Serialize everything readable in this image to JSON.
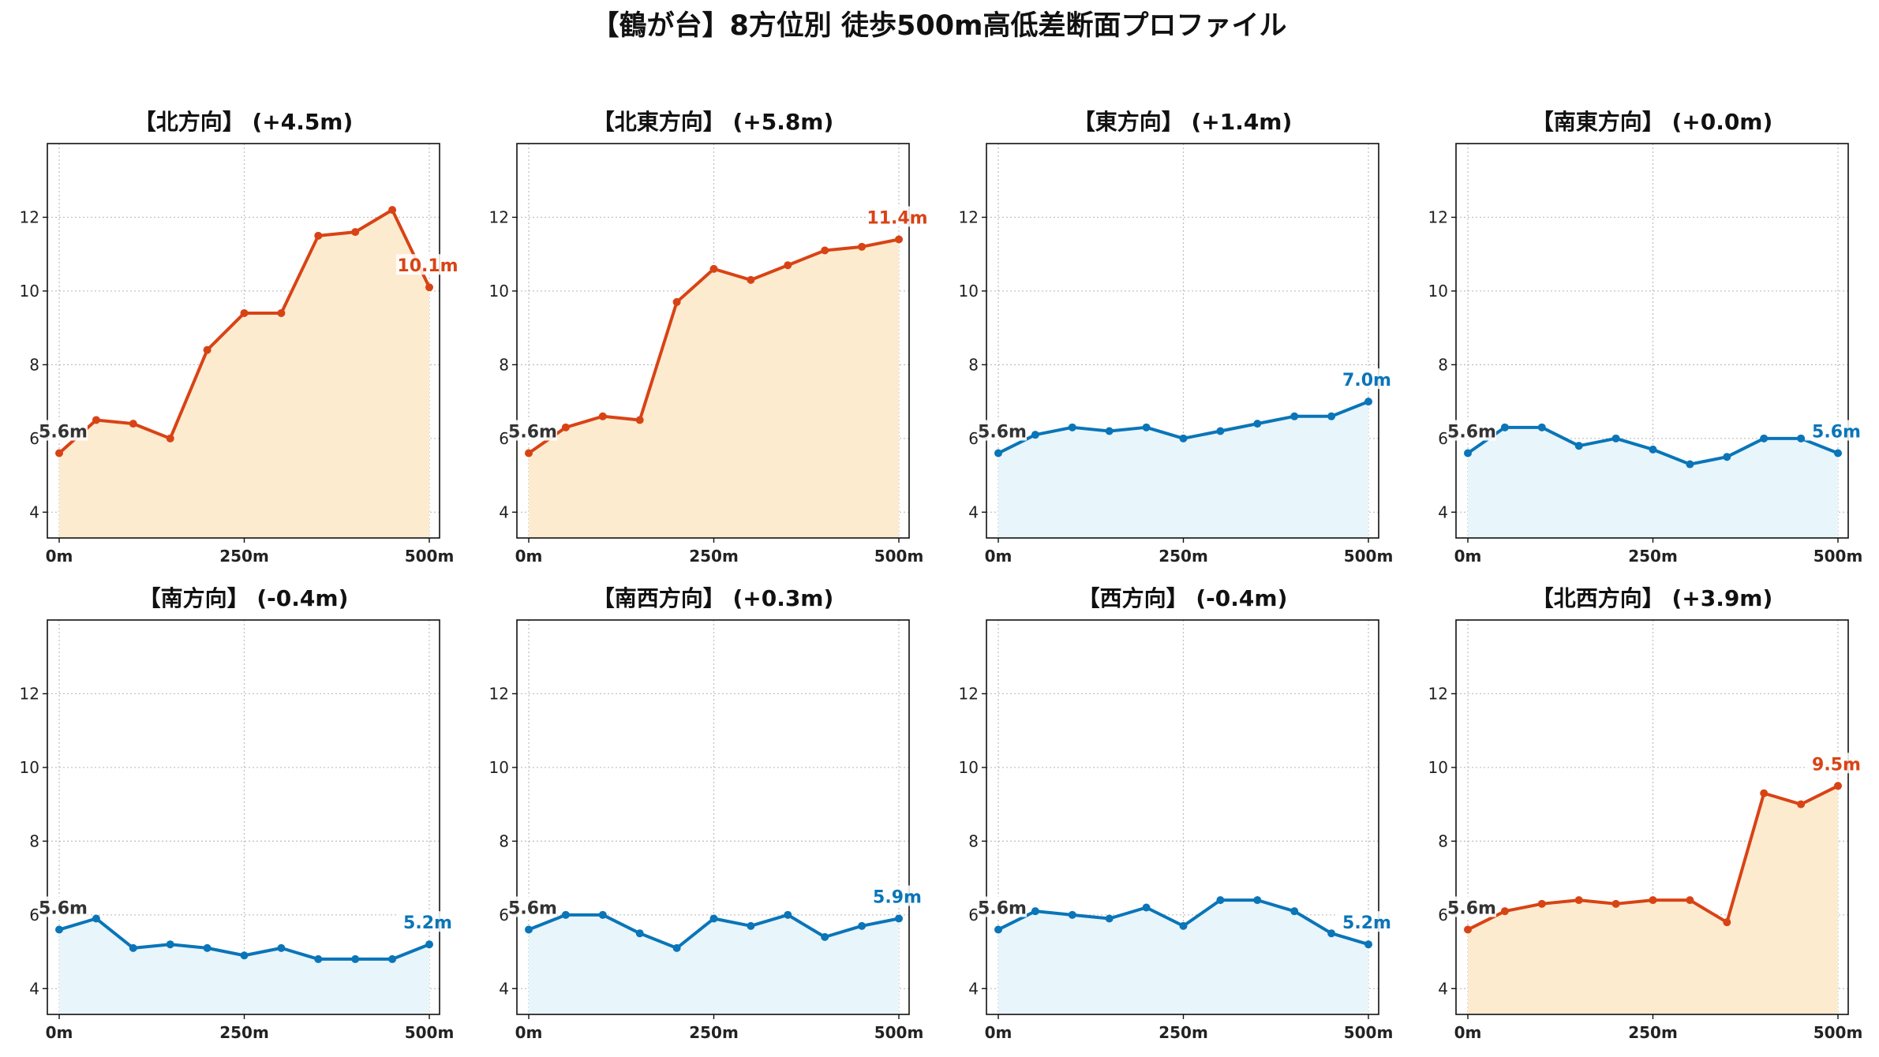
{
  "title": "【鶴が台】8方位別 徒歩500m高低差断面プロファイル",
  "colors": {
    "up_line": "#d84315",
    "up_fill": "#fdebd0",
    "flat_line": "#0a75b8",
    "flat_fill": "#e8f5fb",
    "grid": "#bdbdbd"
  },
  "chart_data": [
    {
      "type": "area",
      "title": "【北方向】 (+4.5m)",
      "x": [
        0,
        50,
        100,
        150,
        200,
        250,
        300,
        350,
        400,
        450,
        500
      ],
      "values": [
        5.6,
        6.5,
        6.4,
        6.0,
        8.4,
        9.4,
        9.4,
        11.5,
        11.6,
        12.2,
        10.1
      ],
      "trend": "up",
      "start_label": "5.6m",
      "end_label": "10.1m",
      "xticks": [
        "0m",
        "250m",
        "500m"
      ],
      "yticks": [
        "4",
        "6",
        "8",
        "10",
        "12"
      ],
      "ylim": [
        3.3,
        14
      ]
    },
    {
      "type": "area",
      "title": "【北東方向】 (+5.8m)",
      "x": [
        0,
        50,
        100,
        150,
        200,
        250,
        300,
        350,
        400,
        450,
        500
      ],
      "values": [
        5.6,
        6.3,
        6.6,
        6.5,
        9.7,
        10.6,
        10.3,
        10.7,
        11.1,
        11.2,
        11.4
      ],
      "trend": "up",
      "start_label": "5.6m",
      "end_label": "11.4m",
      "xticks": [
        "0m",
        "250m",
        "500m"
      ],
      "yticks": [
        "4",
        "6",
        "8",
        "10",
        "12"
      ],
      "ylim": [
        3.3,
        14
      ]
    },
    {
      "type": "area",
      "title": "【東方向】 (+1.4m)",
      "x": [
        0,
        50,
        100,
        150,
        200,
        250,
        300,
        350,
        400,
        450,
        500
      ],
      "values": [
        5.6,
        6.1,
        6.3,
        6.2,
        6.3,
        6.0,
        6.2,
        6.4,
        6.6,
        6.6,
        7.0
      ],
      "trend": "flat",
      "start_label": "5.6m",
      "end_label": "7.0m",
      "xticks": [
        "0m",
        "250m",
        "500m"
      ],
      "yticks": [
        "4",
        "6",
        "8",
        "10",
        "12"
      ],
      "ylim": [
        3.3,
        14
      ]
    },
    {
      "type": "area",
      "title": "【南東方向】 (+0.0m)",
      "x": [
        0,
        50,
        100,
        150,
        200,
        250,
        300,
        350,
        400,
        450,
        500
      ],
      "values": [
        5.6,
        6.3,
        6.3,
        5.8,
        6.0,
        5.7,
        5.3,
        5.5,
        6.0,
        6.0,
        5.6
      ],
      "trend": "flat",
      "start_label": "5.6m",
      "end_label": "5.6m",
      "xticks": [
        "0m",
        "250m",
        "500m"
      ],
      "yticks": [
        "4",
        "6",
        "8",
        "10",
        "12"
      ],
      "ylim": [
        3.3,
        14
      ]
    },
    {
      "type": "area",
      "title": "【南方向】 (-0.4m)",
      "x": [
        0,
        50,
        100,
        150,
        200,
        250,
        300,
        350,
        400,
        450,
        500
      ],
      "values": [
        5.6,
        5.9,
        5.1,
        5.2,
        5.1,
        4.9,
        5.1,
        4.8,
        4.8,
        4.8,
        5.2
      ],
      "trend": "flat",
      "start_label": "5.6m",
      "end_label": "5.2m",
      "xticks": [
        "0m",
        "250m",
        "500m"
      ],
      "yticks": [
        "4",
        "6",
        "8",
        "10",
        "12"
      ],
      "ylim": [
        3.3,
        14
      ]
    },
    {
      "type": "area",
      "title": "【南西方向】 (+0.3m)",
      "x": [
        0,
        50,
        100,
        150,
        200,
        250,
        300,
        350,
        400,
        450,
        500
      ],
      "values": [
        5.6,
        6.0,
        6.0,
        5.5,
        5.1,
        5.9,
        5.7,
        6.0,
        5.4,
        5.7,
        5.9
      ],
      "trend": "flat",
      "start_label": "5.6m",
      "end_label": "5.9m",
      "xticks": [
        "0m",
        "250m",
        "500m"
      ],
      "yticks": [
        "4",
        "6",
        "8",
        "10",
        "12"
      ],
      "ylim": [
        3.3,
        14
      ]
    },
    {
      "type": "area",
      "title": "【西方向】 (-0.4m)",
      "x": [
        0,
        50,
        100,
        150,
        200,
        250,
        300,
        350,
        400,
        450,
        500
      ],
      "values": [
        5.6,
        6.1,
        6.0,
        5.9,
        6.2,
        5.7,
        6.4,
        6.4,
        6.1,
        5.5,
        5.2
      ],
      "trend": "flat",
      "start_label": "5.6m",
      "end_label": "5.2m",
      "xticks": [
        "0m",
        "250m",
        "500m"
      ],
      "yticks": [
        "4",
        "6",
        "8",
        "10",
        "12"
      ],
      "ylim": [
        3.3,
        14
      ]
    },
    {
      "type": "area",
      "title": "【北西方向】 (+3.9m)",
      "x": [
        0,
        50,
        100,
        150,
        200,
        250,
        300,
        350,
        400,
        450,
        500
      ],
      "values": [
        5.6,
        6.1,
        6.3,
        6.4,
        6.3,
        6.4,
        6.4,
        5.8,
        9.3,
        9.0,
        9.5
      ],
      "trend": "up",
      "start_label": "5.6m",
      "end_label": "9.5m",
      "xticks": [
        "0m",
        "250m",
        "500m"
      ],
      "yticks": [
        "4",
        "6",
        "8",
        "10",
        "12"
      ],
      "ylim": [
        3.3,
        14
      ]
    }
  ]
}
